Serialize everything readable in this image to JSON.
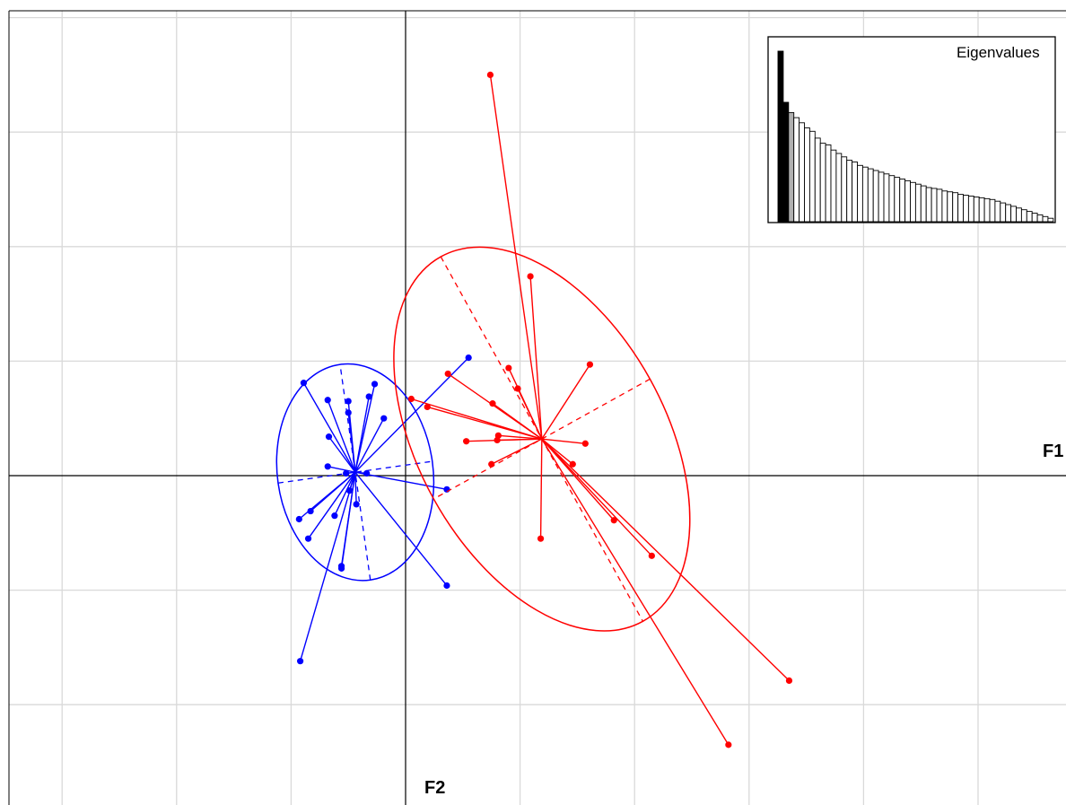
{
  "chart_data": {
    "type": "scatter",
    "subtype": "multivariate ordination scatter with group centroids, star segments, inertia ellipses and eigenvalue barplot inset",
    "axes": {
      "x_label": "F1",
      "y_label": "F2",
      "x_range": [
        -3.55,
        5.7
      ],
      "y_range": [
        -2.85,
        4.1
      ],
      "grid_step": 1,
      "grid": true
    },
    "colors": {
      "group_blue": "#0000ff",
      "group_red": "#ff0000",
      "grid": "#d9d9d9",
      "axis": "#000000"
    },
    "groups": [
      {
        "color": "#0000ff",
        "centroid": [
          -0.44,
          0.03
        ],
        "ellipse": {
          "rx": 0.95,
          "ry": 0.68,
          "angle_deg": -98
        },
        "points": [
          [
            -0.89,
            0.81
          ],
          [
            -0.68,
            0.66
          ],
          [
            -0.5,
            0.65
          ],
          [
            -0.32,
            0.69
          ],
          [
            -0.27,
            0.8
          ],
          [
            -0.19,
            0.5
          ],
          [
            -0.5,
            0.55
          ],
          [
            -0.67,
            0.34
          ],
          [
            -0.68,
            0.08
          ],
          [
            -0.52,
            0.02
          ],
          [
            -0.49,
            -0.13
          ],
          [
            -0.34,
            0.02
          ],
          [
            -0.43,
            -0.25
          ],
          [
            -0.62,
            -0.35
          ],
          [
            -0.83,
            -0.31
          ],
          [
            -0.93,
            -0.38
          ],
          [
            -0.85,
            -0.55
          ],
          [
            -0.56,
            -0.81
          ],
          [
            -0.92,
            -1.62
          ],
          [
            0.36,
            -0.12
          ],
          [
            0.36,
            -0.96
          ],
          [
            0.55,
            1.03
          ],
          [
            -0.56,
            -0.79
          ]
        ]
      },
      {
        "color": "#ff0000",
        "centroid": [
          1.19,
          0.32
        ],
        "ellipse": {
          "rx": 1.82,
          "ry": 1.08,
          "angle_deg": 61
        },
        "points": [
          [
            0.74,
            3.5
          ],
          [
            1.09,
            1.74
          ],
          [
            0.9,
            0.94
          ],
          [
            0.98,
            0.76
          ],
          [
            0.37,
            0.89
          ],
          [
            0.05,
            0.67
          ],
          [
            0.19,
            0.6
          ],
          [
            0.76,
            0.63
          ],
          [
            1.61,
            0.97
          ],
          [
            0.81,
            0.35
          ],
          [
            0.8,
            0.31
          ],
          [
            0.53,
            0.3
          ],
          [
            0.75,
            0.1
          ],
          [
            1.57,
            0.28
          ],
          [
            1.46,
            0.1
          ],
          [
            1.82,
            -0.39
          ],
          [
            1.18,
            -0.55
          ],
          [
            2.15,
            -0.7
          ],
          [
            3.35,
            -1.79
          ],
          [
            2.82,
            -2.35
          ]
        ]
      }
    ],
    "inset": {
      "title": "Eigenvalues",
      "type": "bar",
      "highlighted_black": 2,
      "highlighted_grey": 1,
      "values": [
        100,
        70,
        64,
        61,
        58,
        55,
        53,
        49,
        46,
        45,
        42,
        40,
        38,
        36,
        35,
        33,
        32,
        31,
        30,
        29,
        28,
        27,
        26,
        25,
        24,
        23,
        22,
        21,
        20,
        19.5,
        19,
        18,
        17.5,
        17,
        16,
        15.5,
        15,
        14.5,
        14,
        13.5,
        13,
        12,
        11,
        10,
        9,
        8,
        7,
        6,
        5,
        4,
        3,
        2
      ]
    }
  }
}
